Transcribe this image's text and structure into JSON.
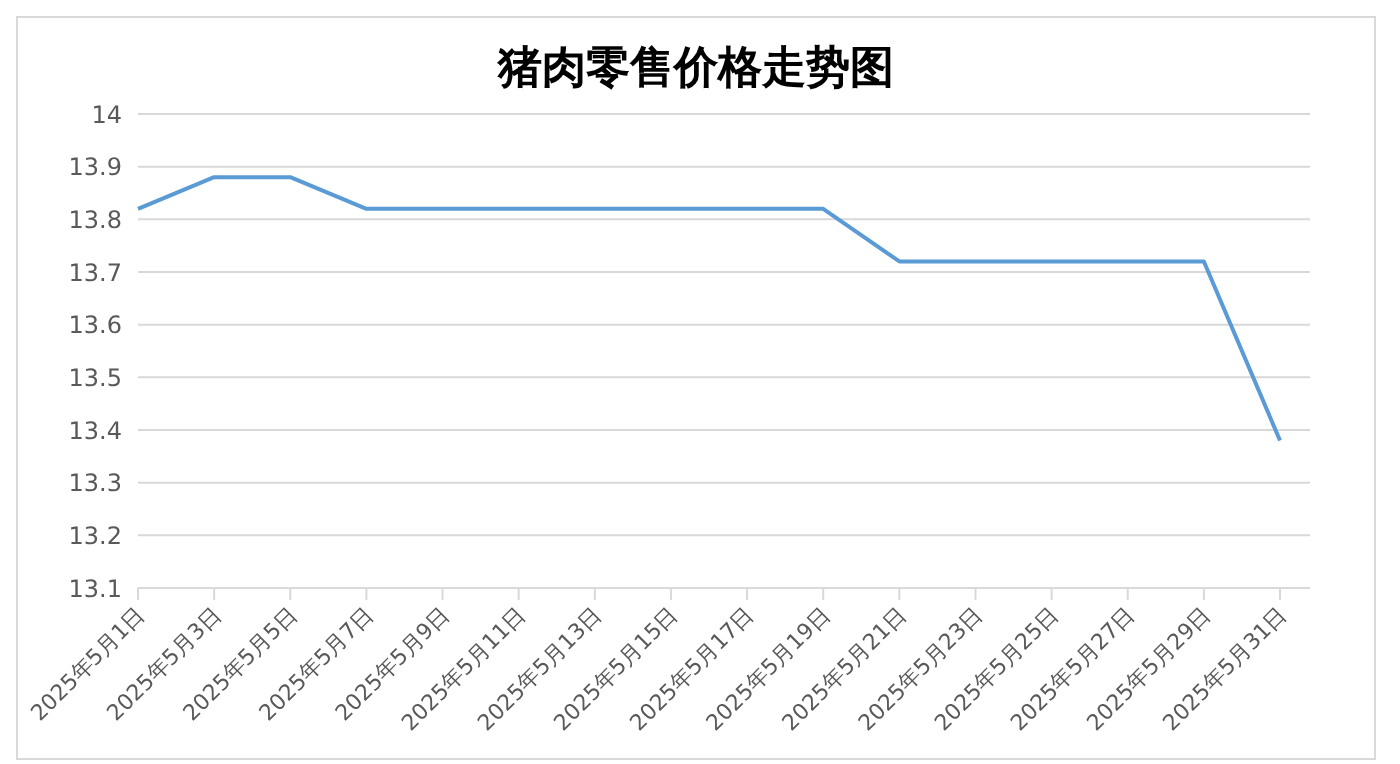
{
  "chart_data": {
    "type": "line",
    "title": "猪肉零售价格走势图",
    "categories": [
      "2025年5月1日",
      "2025年5月3日",
      "2025年5月5日",
      "2025年5月7日",
      "2025年5月9日",
      "2025年5月11日",
      "2025年5月13日",
      "2025年5月15日",
      "2025年5月17日",
      "2025年5月19日",
      "2025年5月21日",
      "2025年5月23日",
      "2025年5月25日",
      "2025年5月27日",
      "2025年5月29日",
      "2025年5月31日"
    ],
    "series": [
      {
        "color": "#5b9bd5",
        "values": [
          13.82,
          13.88,
          13.88,
          13.82,
          13.82,
          13.82,
          13.82,
          13.82,
          13.82,
          13.82,
          13.72,
          13.72,
          13.72,
          13.72,
          13.72,
          13.38
        ]
      }
    ],
    "ylim": [
      13.1,
      14
    ],
    "yticks": [
      13.1,
      13.2,
      13.3,
      13.4,
      13.5,
      13.6,
      13.7,
      13.8,
      13.9,
      14
    ],
    "grid": "y",
    "legend": false,
    "marker": "none",
    "line_style": "solid"
  }
}
